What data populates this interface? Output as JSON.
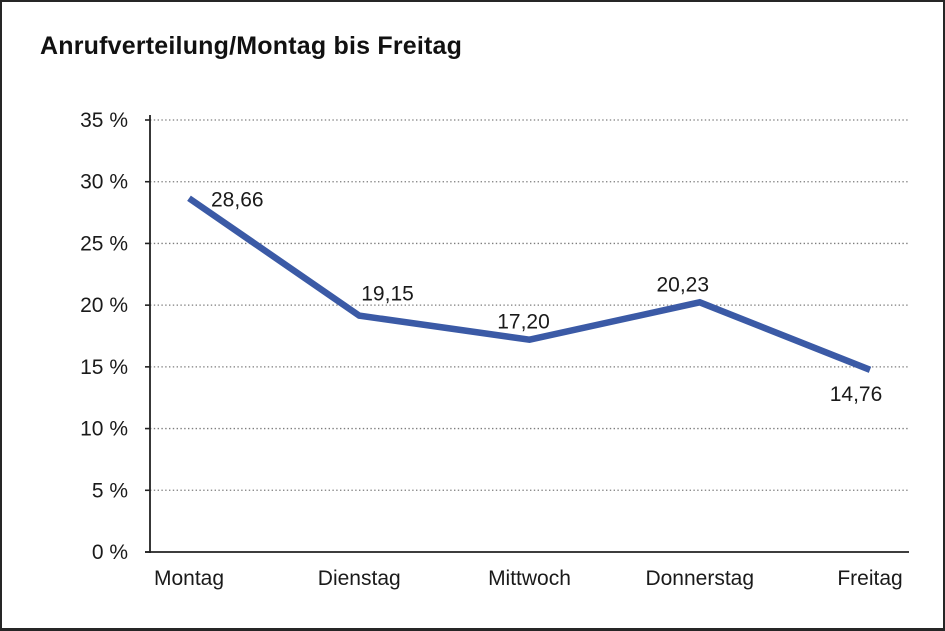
{
  "title": "Anrufverteilung/Montag bis Freitag",
  "chart_data": {
    "type": "line",
    "title": "Anrufverteilung/Montag bis Freitag",
    "categories": [
      "Montag",
      "Dienstag",
      "Mittwoch",
      "Donnerstag",
      "Freitag"
    ],
    "series": [
      {
        "name": "Anrufverteilung",
        "values": [
          28.66,
          19.15,
          17.2,
          20.23,
          14.76
        ]
      }
    ],
    "point_labels": [
      "28,66",
      "19,15",
      "17,20",
      "20,23",
      "14,76"
    ],
    "decimal_separator": ",",
    "xlabel": "",
    "ylabel": "",
    "ylim": [
      0,
      35
    ],
    "y_tick_step": 5,
    "y_ticks": [
      {
        "value": 35,
        "label": "35 %"
      },
      {
        "value": 30,
        "label": "30 %"
      },
      {
        "value": 25,
        "label": "25 %"
      },
      {
        "value": 20,
        "label": "20 %"
      },
      {
        "value": 15,
        "label": "15 %"
      },
      {
        "value": 10,
        "label": "10 %"
      },
      {
        "value": 5,
        "label": "5 %"
      },
      {
        "value": 0,
        "label": "0 %"
      }
    ],
    "grid": "horizontal-dotted",
    "legend_position": "none",
    "colors": {
      "line": "#3B5AA6",
      "grid": "#7d7d7d",
      "axis": "#222222",
      "text": "#1a1a1a",
      "background": "#ffffff",
      "border": "#262626"
    }
  }
}
